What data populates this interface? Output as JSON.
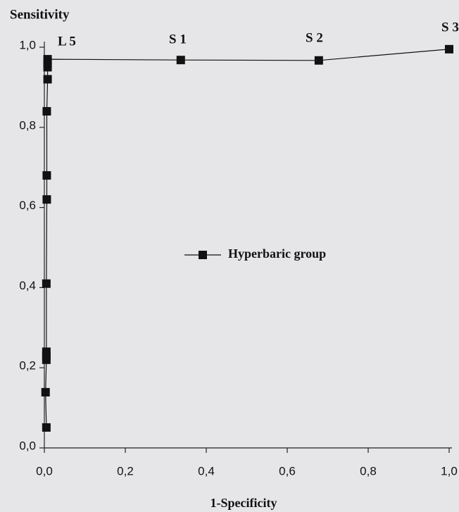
{
  "chart_data": {
    "type": "line",
    "y_label": "Sensitivity",
    "x_label": "1-Specificity",
    "series": [
      {
        "name": "Hyperbaric group",
        "color": "#111111",
        "x": [
          0.005,
          0.003,
          0.005,
          0.005,
          0.005,
          0.005,
          0.006,
          0.006,
          0.006,
          0.008,
          0.008,
          0.008,
          0.008,
          0.337,
          0.678,
          1.0
        ],
        "values": [
          0.051,
          0.139,
          0.22,
          0.23,
          0.24,
          0.41,
          0.62,
          0.68,
          0.84,
          0.92,
          0.95,
          0.96,
          0.97,
          0.968,
          0.967,
          0.995
        ]
      }
    ],
    "annotations": [
      "L 5",
      "S 1",
      "S 2",
      "S 3"
    ],
    "xlim": [
      0,
      1.0
    ],
    "ylim": [
      0,
      1.0
    ],
    "xticks": [
      {
        "value": 0,
        "label": "0,0"
      },
      {
        "value": 0.2,
        "label": "0,2"
      },
      {
        "value": 0.4,
        "label": "0,4"
      },
      {
        "value": 0.6,
        "label": "0,6"
      },
      {
        "value": 0.8,
        "label": "0,8"
      },
      {
        "value": 1.0,
        "label": "1,0"
      }
    ],
    "yticks": [
      {
        "value": 0,
        "label": "0,0"
      },
      {
        "value": 0.2,
        "label": "0,2"
      },
      {
        "value": 0.4,
        "label": "0,4"
      },
      {
        "value": 0.6,
        "label": "0,6"
      },
      {
        "value": 0.8,
        "label": "0,8"
      },
      {
        "value": 1.0,
        "label": "1,0"
      }
    ],
    "legend": "center"
  }
}
